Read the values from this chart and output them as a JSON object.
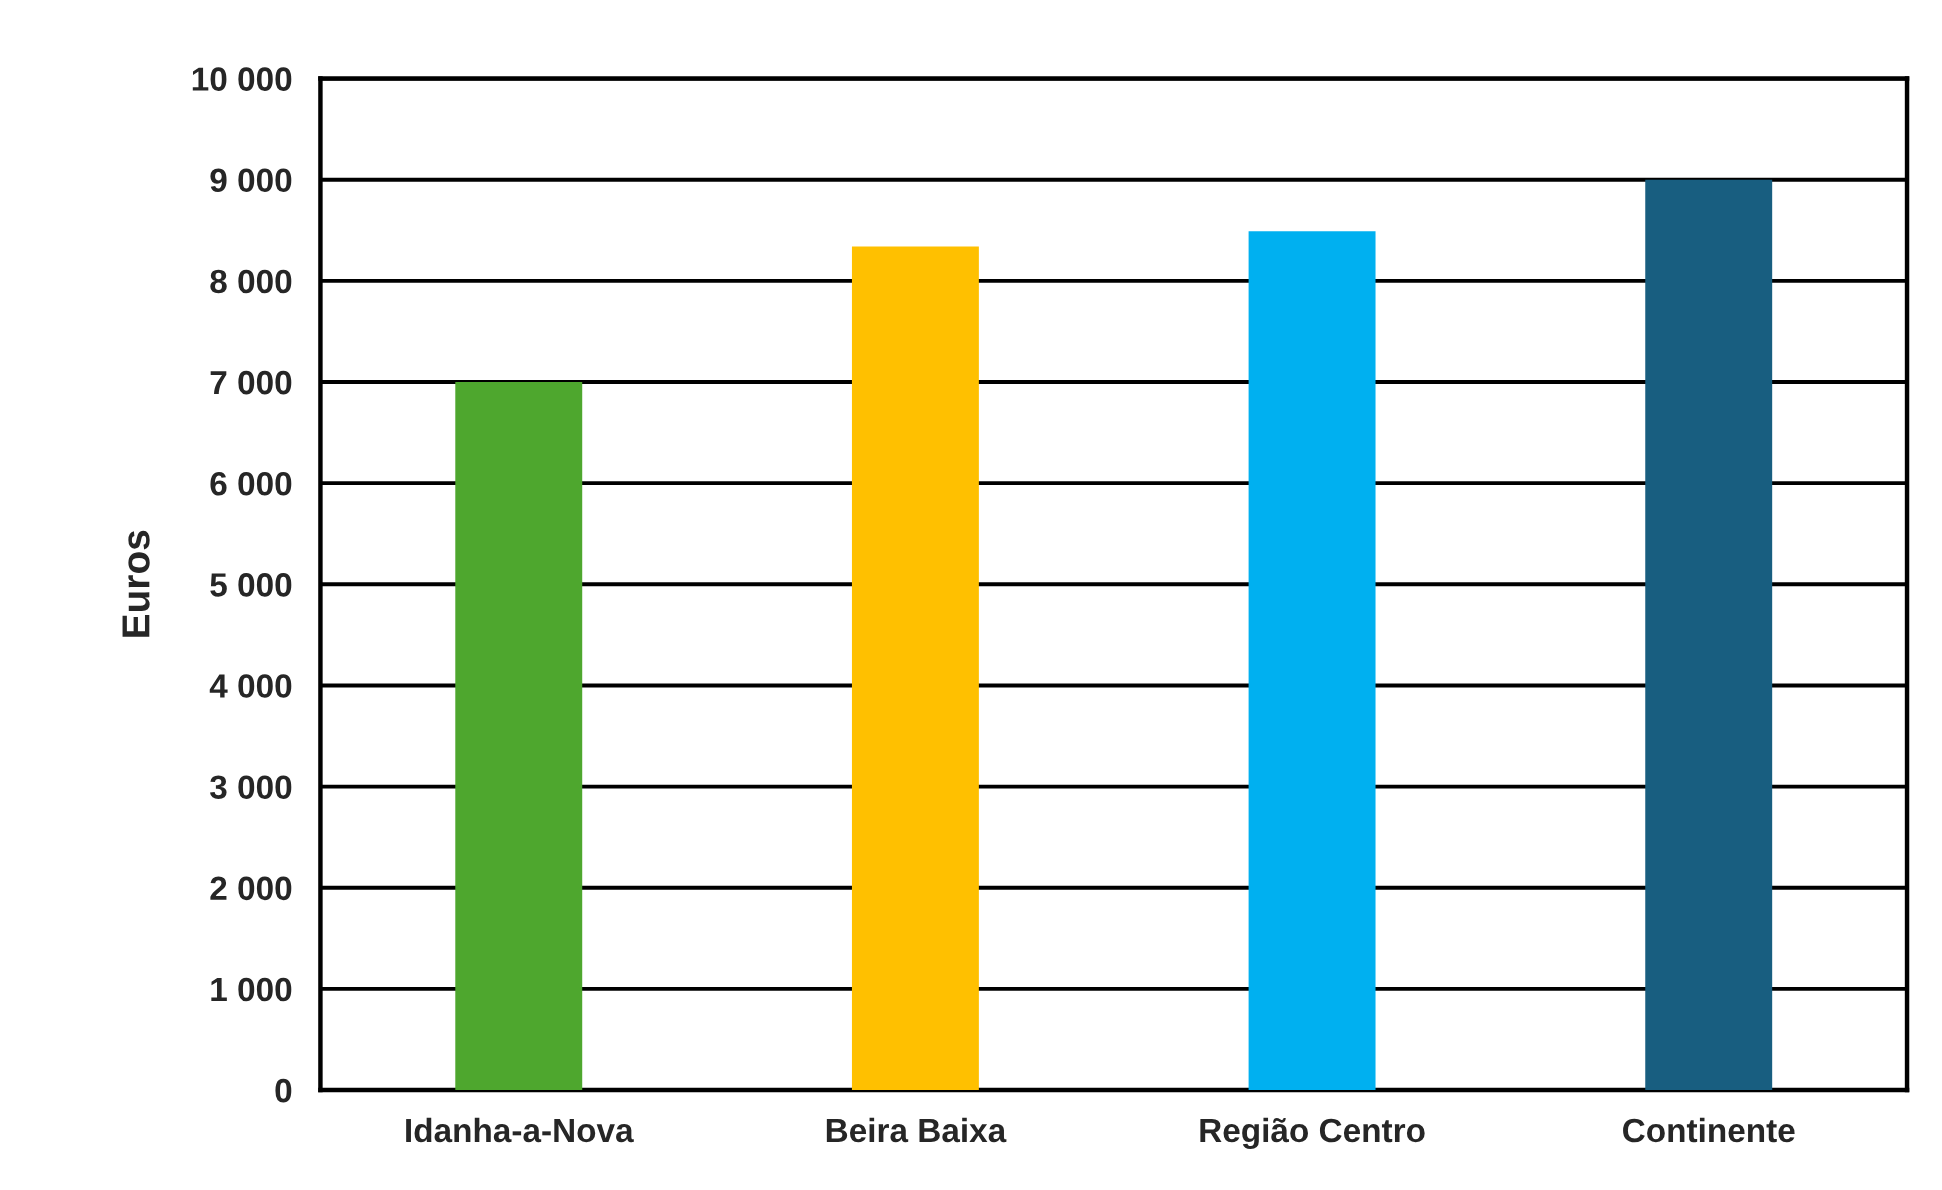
{
  "chart_data": {
    "type": "bar",
    "ylabel": "Euros",
    "categories": [
      "Idanha-a-Nova",
      "Beira Baixa",
      "Região Centro",
      "Continente"
    ],
    "values": [
      7000,
      8340,
      8490,
      9000
    ],
    "colors": [
      "#4ea72e",
      "#ffc000",
      "#00b0f0",
      "#185e80"
    ],
    "ylim": [
      0,
      10000
    ],
    "yticks": [
      0,
      {
        "value": 1000,
        "label": "1 000"
      },
      {
        "value": 2000,
        "label": "2 000"
      },
      {
        "value": 3000,
        "label": "3 000"
      },
      {
        "value": 4000,
        "label": "4 000"
      },
      {
        "value": 5000,
        "label": "5 000"
      },
      {
        "value": 6000,
        "label": "6 000"
      },
      {
        "value": 7000,
        "label": "7 000"
      },
      {
        "value": 8000,
        "label": "8 000"
      },
      {
        "value": 9000,
        "label": "9 000"
      },
      {
        "value": 10000,
        "label": "10 000"
      }
    ],
    "grid": "y",
    "legend": false
  }
}
